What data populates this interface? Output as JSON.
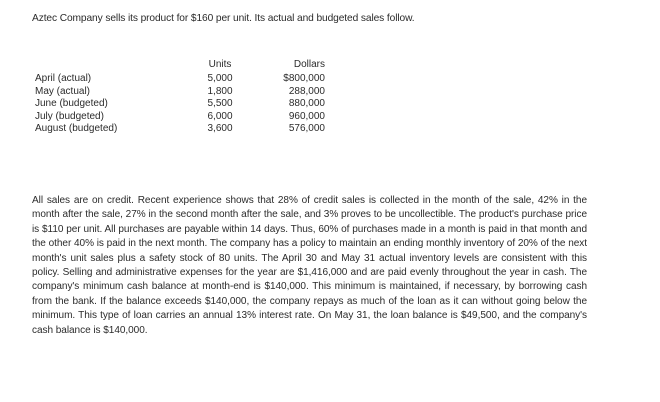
{
  "intro": "Aztec Company sells its product for $160 per unit. Its actual and budgeted sales follow.",
  "table": {
    "headers": {
      "units": "Units",
      "dollars": "Dollars"
    },
    "rows": [
      {
        "month": "April (actual)",
        "units": "5,000",
        "dollars": "$800,000"
      },
      {
        "month": "May (actual)",
        "units": "1,800",
        "dollars": "288,000"
      },
      {
        "month": "June (budgeted)",
        "units": "5,500",
        "dollars": "880,000"
      },
      {
        "month": "July (budgeted)",
        "units": "6,000",
        "dollars": "960,000"
      },
      {
        "month": "August (budgeted)",
        "units": "3,600",
        "dollars": "576,000"
      }
    ]
  },
  "paragraph": "All sales are on credit. Recent experience shows that 28% of credit sales is collected in the month of the sale, 42% in the month after the sale, 27% in the second month after the sale, and 3% proves to be uncollectible. The product's purchase price is $110 per unit. All purchases are payable within 14 days. Thus, 60% of purchases made in a month is paid in that month and the other 40% is paid in the next month. The company has a policy to maintain an ending monthly inventory of 20% of the next month's unit sales plus a safety stock of 80 units. The April 30 and May 31 actual inventory levels are consistent with this policy. Selling and administrative expenses for the year are $1,416,000 and are paid evenly throughout the year in cash. The company's minimum cash balance at month-end is $140,000. This minimum is maintained, if necessary, by borrowing cash from the bank. If the balance exceeds $140,000, the company repays as much of the loan as it can without going below the minimum. This type of loan carries an annual 13% interest rate. On May 31, the loan balance is $49,500, and the company's cash balance is $140,000."
}
